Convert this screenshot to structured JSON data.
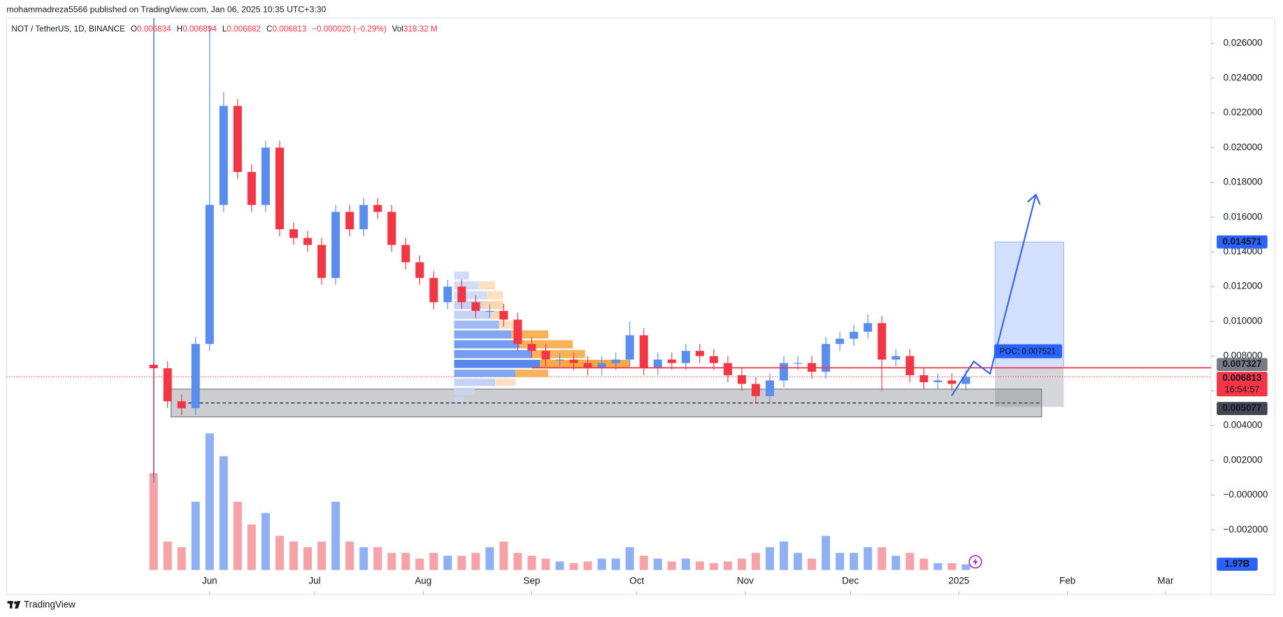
{
  "header": {
    "publisher": "mohammadreza5566 published on TradingView.com, Jan 06, 2025 10:35 UTC+3:30"
  },
  "legend": {
    "symbol": "NOT / TetherUS, 1D, BINANCE",
    "open_key": "O",
    "open": 0.006834,
    "high_key": "H",
    "high": 0.006894,
    "low_key": "L",
    "low": 0.006682,
    "close_key": "C",
    "close": 0.006813,
    "change": "−0.000020 (−0.29%)",
    "volume_key": "Vol",
    "volume": "318.32 M"
  },
  "footer": {
    "brand": "TradingView"
  },
  "chart_data": {
    "type": "candlestick",
    "up_color": "#5b8def",
    "down_color": "#f23645",
    "values": [
      [
        0.0075,
        0.0076,
        0.001,
        0.0073
      ],
      [
        0.0073,
        0.0077,
        0.005,
        0.0054
      ],
      [
        0.0054,
        0.0058,
        0.0046,
        0.005
      ],
      [
        0.005,
        0.0091,
        0.0046,
        0.0087
      ],
      [
        0.0087,
        0.027,
        0.0083,
        0.0167
      ],
      [
        0.0167,
        0.0232,
        0.0163,
        0.0224
      ],
      [
        0.0224,
        0.0228,
        0.0182,
        0.0186
      ],
      [
        0.0186,
        0.019,
        0.0163,
        0.0167
      ],
      [
        0.0167,
        0.0204,
        0.0163,
        0.02
      ],
      [
        0.02,
        0.0204,
        0.0149,
        0.0153
      ],
      [
        0.0153,
        0.0157,
        0.0144,
        0.0148
      ],
      [
        0.0148,
        0.0152,
        0.014,
        0.0144
      ],
      [
        0.0144,
        0.0148,
        0.0121,
        0.0125
      ],
      [
        0.0125,
        0.0167,
        0.0121,
        0.0163
      ],
      [
        0.0163,
        0.0167,
        0.0149,
        0.0153
      ],
      [
        0.0153,
        0.0171,
        0.0149,
        0.0167
      ],
      [
        0.0167,
        0.0171,
        0.0159,
        0.0163
      ],
      [
        0.0163,
        0.0167,
        0.014,
        0.0144
      ],
      [
        0.0144,
        0.0148,
        0.013,
        0.0134
      ],
      [
        0.0134,
        0.0138,
        0.0121,
        0.0125
      ],
      [
        0.0125,
        0.0129,
        0.0107,
        0.0111
      ],
      [
        0.0111,
        0.0124,
        0.0107,
        0.012
      ],
      [
        0.012,
        0.0124,
        0.0107,
        0.0111
      ],
      [
        0.0111,
        0.0115,
        0.0102,
        0.0106
      ],
      [
        0.0106,
        0.011,
        0.0102,
        0.0106
      ],
      [
        0.0106,
        0.011,
        0.0097,
        0.0101
      ],
      [
        0.0101,
        0.0105,
        0.0083,
        0.0087
      ],
      [
        0.0087,
        0.0091,
        0.0079,
        0.0083
      ],
      [
        0.0083,
        0.0087,
        0.0074,
        0.0078
      ],
      [
        0.0078,
        0.0082,
        0.0074,
        0.0078
      ],
      [
        0.0078,
        0.0082,
        0.0072,
        0.0076
      ],
      [
        0.0076,
        0.008,
        0.0069,
        0.0073
      ],
      [
        0.0073,
        0.008,
        0.0069,
        0.0076
      ],
      [
        0.0076,
        0.0082,
        0.0072,
        0.0078
      ],
      [
        0.0078,
        0.01,
        0.0074,
        0.0092
      ],
      [
        0.0092,
        0.0096,
        0.0069,
        0.0073
      ],
      [
        0.0073,
        0.0082,
        0.0069,
        0.0078
      ],
      [
        0.0078,
        0.0082,
        0.0072,
        0.0076
      ],
      [
        0.0076,
        0.0087,
        0.0072,
        0.0083
      ],
      [
        0.0083,
        0.0087,
        0.0076,
        0.008
      ],
      [
        0.008,
        0.0084,
        0.0072,
        0.0076
      ],
      [
        0.0076,
        0.008,
        0.0065,
        0.0069
      ],
      [
        0.0069,
        0.0073,
        0.006,
        0.0064
      ],
      [
        0.0064,
        0.0068,
        0.0053,
        0.0057
      ],
      [
        0.0057,
        0.007,
        0.0053,
        0.0066
      ],
      [
        0.0066,
        0.008,
        0.0062,
        0.0076
      ],
      [
        0.0076,
        0.008,
        0.0072,
        0.0076
      ],
      [
        0.0076,
        0.008,
        0.0067,
        0.0071
      ],
      [
        0.0071,
        0.0091,
        0.0067,
        0.0087
      ],
      [
        0.0087,
        0.0094,
        0.0083,
        0.009
      ],
      [
        0.009,
        0.0098,
        0.0086,
        0.0094
      ],
      [
        0.0094,
        0.0104,
        0.009,
        0.0099
      ],
      [
        0.0099,
        0.0103,
        0.006,
        0.0078
      ],
      [
        0.0078,
        0.0084,
        0.0074,
        0.008
      ],
      [
        0.008,
        0.0084,
        0.0065,
        0.0069
      ],
      [
        0.0069,
        0.0073,
        0.0061,
        0.0065
      ],
      [
        0.0065,
        0.007,
        0.0061,
        0.0066
      ],
      [
        0.0066,
        0.007,
        0.006,
        0.0064
      ],
      [
        0.0064,
        0.0072,
        0.006,
        0.0068
      ]
    ],
    "volume": {
      "up_color": "#8fb0f3",
      "down_color": "#f5a3a8",
      "values": [
        34,
        10,
        8,
        24,
        48,
        40,
        24,
        16,
        20,
        12,
        10,
        8,
        10,
        24,
        10,
        8,
        8,
        6,
        6,
        4,
        6,
        5,
        5,
        6,
        8,
        10,
        6,
        5,
        4,
        3,
        2.4,
        3,
        4,
        4,
        8,
        5,
        4,
        3,
        4,
        3,
        2.4,
        3,
        4,
        6,
        8,
        10,
        6,
        4,
        12,
        6,
        6,
        8,
        8,
        5,
        6,
        4,
        2.4,
        2.4,
        1.97
      ],
      "last_label": "1.97B"
    },
    "xlim": [
      -10.5,
      75.5
    ],
    "xticks": [
      {
        "value": 4,
        "label": "Jun"
      },
      {
        "value": 11.5,
        "label": "Jul"
      },
      {
        "value": 19.25,
        "label": "Aug"
      },
      {
        "value": 27,
        "label": "Sep"
      },
      {
        "value": 34.5,
        "label": "Oct"
      },
      {
        "value": 42.25,
        "label": "Nov"
      },
      {
        "value": 49.75,
        "label": "Dec"
      },
      {
        "value": 57.5,
        "label": "2025"
      },
      {
        "value": 65.25,
        "label": "Feb"
      },
      {
        "value": 72.25,
        "label": "Mar"
      }
    ],
    "ylim": [
      -0.00431,
      0.02732
    ],
    "yticks": [
      {
        "value": 0.026,
        "label": "0.026000"
      },
      {
        "value": 0.024,
        "label": "0.024000"
      },
      {
        "value": 0.022,
        "label": "0.022000"
      },
      {
        "value": 0.02,
        "label": "0.020000"
      },
      {
        "value": 0.018,
        "label": "0.018000"
      },
      {
        "value": 0.016,
        "label": "0.016000"
      },
      {
        "value": 0.014,
        "label": "0.014000"
      },
      {
        "value": 0.012,
        "label": "0.012000"
      },
      {
        "value": 0.01,
        "label": "0.010000"
      },
      {
        "value": 0.008,
        "label": "0.008000"
      },
      {
        "value": 0.006,
        "label": "0.006000"
      },
      {
        "value": 0.004,
        "label": "0.004000"
      },
      {
        "value": 0.002,
        "label": "0.002000"
      },
      {
        "value": 0,
        "label": "−0.000000"
      },
      {
        "value": -0.002,
        "label": "−0.002000"
      }
    ],
    "zone": [
      0.0045,
      0.0061
    ],
    "zone_midline": 0.0053,
    "resistance": 0.007327,
    "last_price": 0.006813,
    "countdown": "16:54:57",
    "target": 0.014571,
    "stop": 0.005077,
    "poc_label": "POC: 0.007521"
  }
}
